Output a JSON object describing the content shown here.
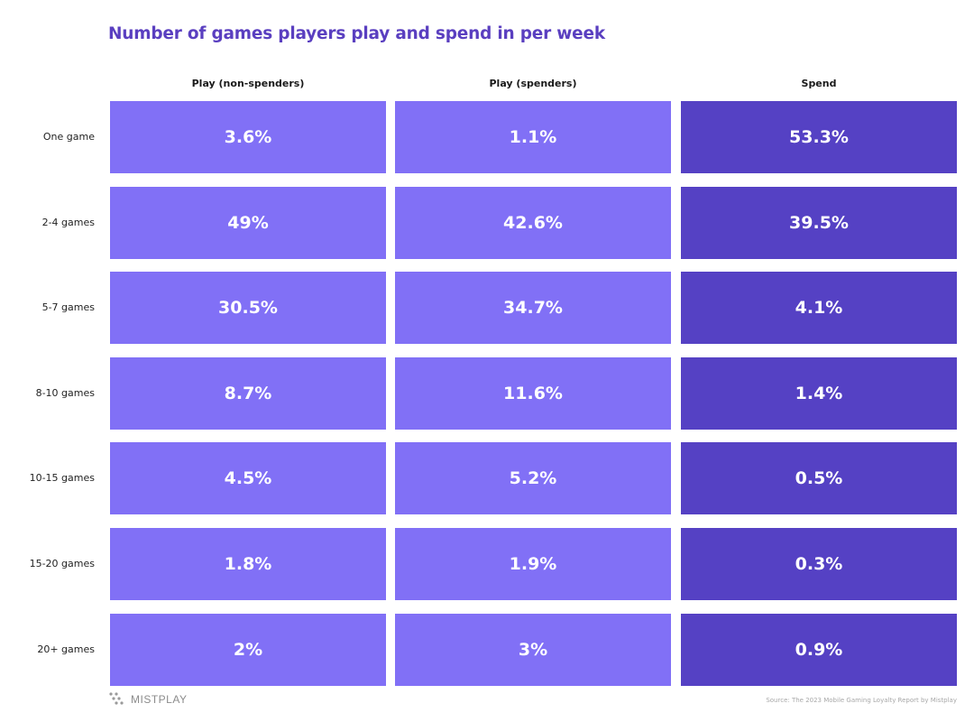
{
  "title": "Number of games players play and spend in per week",
  "source": "Source: The 2023 Mobile Gaming Loyalty Report by Mistplay",
  "logo_text": "MISTPLAY",
  "colors": {
    "title": "#5a3fc0",
    "play_cell": "#8170f6",
    "spend_cell": "#5541c4"
  },
  "chart_data": {
    "type": "table",
    "columns": [
      "Play (non-spenders)",
      "Play (spenders)",
      "Spend"
    ],
    "rows": [
      "One game",
      "2-4 games",
      "5-7 games",
      "8-10 games",
      "10-15 games",
      "15-20 games",
      "20+ games"
    ],
    "series": [
      {
        "name": "Play (non-spenders)",
        "labels": [
          "3.6%",
          "49%",
          "30.5%",
          "8.7%",
          "4.5%",
          "1.8%",
          "2%"
        ],
        "values": [
          3.6,
          49,
          30.5,
          8.7,
          4.5,
          1.8,
          2
        ]
      },
      {
        "name": "Play (spenders)",
        "labels": [
          "1.1%",
          "42.6%",
          "34.7%",
          "11.6%",
          "5.2%",
          "1.9%",
          "3%"
        ],
        "values": [
          1.1,
          42.6,
          34.7,
          11.6,
          5.2,
          1.9,
          3
        ]
      },
      {
        "name": "Spend",
        "labels": [
          "53.3%",
          "39.5%",
          "4.1%",
          "1.4%",
          "0.5%",
          "0.3%",
          "0.9%"
        ],
        "values": [
          53.3,
          39.5,
          4.1,
          1.4,
          0.5,
          0.3,
          0.9
        ]
      }
    ]
  }
}
